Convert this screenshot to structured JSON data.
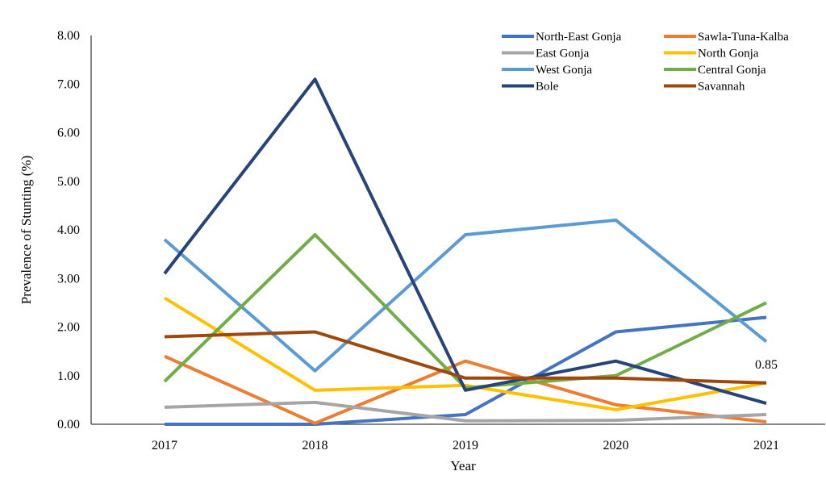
{
  "chart_data": {
    "type": "line",
    "title": "",
    "xlabel": "Year",
    "ylabel": "Prevalence of Stunting (%)",
    "x": [
      "2017",
      "2018",
      "2019",
      "2020",
      "2021"
    ],
    "ylim": [
      0,
      8
    ],
    "yticks": [
      "0.00",
      "1.00",
      "2.00",
      "3.00",
      "4.00",
      "5.00",
      "6.00",
      "7.00",
      "8.00"
    ],
    "grid": false,
    "legend_position": "top-right",
    "series": [
      {
        "name": "North-East Gonja",
        "color": "#4472C4",
        "values": [
          0.0,
          0.0,
          0.2,
          1.9,
          2.2
        ]
      },
      {
        "name": "Sawla-Tuna-Kalba",
        "color": "#ED7D31",
        "values": [
          1.4,
          0.02,
          1.3,
          0.4,
          0.05
        ]
      },
      {
        "name": "East Gonja",
        "color": "#A5A5A5",
        "values": [
          0.35,
          0.45,
          0.07,
          0.08,
          0.2
        ]
      },
      {
        "name": "North Gonja",
        "color": "#FFC000",
        "values": [
          2.6,
          0.7,
          0.8,
          0.3,
          0.85
        ]
      },
      {
        "name": "West Gonja",
        "color": "#5B9BD5",
        "values": [
          3.8,
          1.1,
          3.9,
          4.2,
          1.7
        ]
      },
      {
        "name": "Central Gonja",
        "color": "#70AD47",
        "values": [
          0.88,
          3.9,
          0.75,
          1.0,
          2.5
        ]
      },
      {
        "name": "Bole",
        "color": "#264478",
        "values": [
          3.1,
          7.1,
          0.7,
          1.3,
          0.43
        ]
      },
      {
        "name": "Savannah",
        "color": "#9E480E",
        "values": [
          1.8,
          1.9,
          0.95,
          0.95,
          0.85
        ]
      }
    ],
    "annotations": [
      {
        "series": "Savannah",
        "x": "2021",
        "text": "0.85"
      }
    ]
  }
}
